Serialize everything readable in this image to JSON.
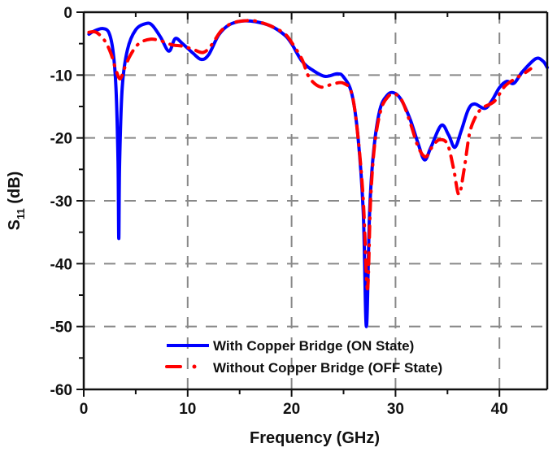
{
  "chart_data": {
    "type": "line",
    "title": "",
    "xlabel": "Frequency (GHz)",
    "ylabel": "S11 (dB)",
    "ylabel_main": "S",
    "ylabel_sub": "11",
    "ylabel_unit": "(dB)",
    "xlim": [
      0,
      44.6
    ],
    "ylim": [
      -60,
      0
    ],
    "xticks": [
      0,
      10,
      20,
      30,
      40
    ],
    "yticks": [
      0,
      -10,
      -20,
      -30,
      -40,
      -50,
      -60
    ],
    "xtick_labels": [
      "0",
      "10",
      "20",
      "30",
      "40"
    ],
    "ytick_labels": [
      "0",
      "-10",
      "-20",
      "-30",
      "-40",
      "-50",
      "-60"
    ],
    "grid": true,
    "legend_position": "lower center",
    "series": [
      {
        "name": "With Copper Bridge (ON State)",
        "color": "#0000ff",
        "style": "solid",
        "x": [
          0.5,
          1.0,
          1.8,
          2.4,
          2.8,
          3.1,
          3.3,
          3.37,
          3.45,
          3.7,
          4.2,
          5.0,
          6.0,
          6.6,
          7.4,
          8.2,
          8.8,
          9.5,
          10.5,
          11.3,
          12.0,
          13.0,
          14.0,
          15.3,
          16.5,
          18.0,
          19.3,
          20.0,
          21.0,
          22.0,
          23.2,
          24.4,
          25.0,
          25.8,
          26.4,
          26.9,
          27.2,
          27.5,
          27.9,
          28.5,
          29.2,
          29.8,
          30.5,
          31.4,
          32.2,
          32.8,
          33.4,
          34.4,
          35.1,
          35.7,
          36.3,
          37.0,
          37.6,
          38.6,
          39.3,
          40.0,
          40.7,
          41.4,
          42.2,
          43.5,
          44.2,
          44.6
        ],
        "y": [
          -3.5,
          -3.0,
          -2.6,
          -3.2,
          -6.0,
          -12.0,
          -24.0,
          -36.0,
          -24.0,
          -12.0,
          -6.0,
          -2.8,
          -1.8,
          -2.1,
          -4.0,
          -6.2,
          -4.2,
          -5.0,
          -6.5,
          -7.5,
          -6.8,
          -3.6,
          -2.0,
          -1.4,
          -1.5,
          -2.2,
          -3.6,
          -5.0,
          -7.8,
          -9.2,
          -10.2,
          -9.8,
          -10.3,
          -13.0,
          -20.0,
          -32.0,
          -50.0,
          -32.0,
          -22.0,
          -15.5,
          -13.2,
          -12.8,
          -13.8,
          -17.0,
          -21.0,
          -23.5,
          -21.5,
          -18.0,
          -19.5,
          -21.5,
          -19.0,
          -15.5,
          -14.6,
          -15.3,
          -14.0,
          -12.0,
          -11.0,
          -11.3,
          -9.5,
          -7.4,
          -7.8,
          -8.8
        ]
      },
      {
        "name": "Without Copper Bridge (OFF State)",
        "color": "#ff0000",
        "style": "dash-dot",
        "x": [
          0.5,
          1.2,
          2.0,
          2.6,
          3.1,
          3.5,
          3.9,
          4.5,
          5.3,
          6.4,
          7.5,
          8.5,
          9.5,
          10.5,
          11.5,
          12.3,
          13.2,
          14.2,
          15.3,
          16.5,
          18.0,
          19.3,
          20.0,
          21.0,
          21.7,
          22.8,
          24.0,
          25.0,
          25.8,
          26.4,
          26.9,
          27.3,
          27.6,
          28.0,
          28.6,
          29.3,
          29.9,
          30.6,
          31.4,
          32.2,
          32.9,
          33.5,
          34.2,
          35.0,
          35.6,
          36.1,
          36.6,
          37.1,
          37.6,
          38.3,
          39.5,
          40.5,
          41.5,
          42.5,
          43.0
        ],
        "y": [
          -3.2,
          -3.2,
          -4.5,
          -6.5,
          -9.2,
          -10.6,
          -9.0,
          -6.8,
          -5.0,
          -4.3,
          -4.6,
          -5.2,
          -5.4,
          -5.9,
          -6.4,
          -5.2,
          -3.0,
          -1.8,
          -1.4,
          -1.4,
          -2.2,
          -3.4,
          -4.8,
          -7.5,
          -10.4,
          -11.9,
          -11.4,
          -11.3,
          -13.0,
          -20.0,
          -30.0,
          -44.0,
          -30.0,
          -21.0,
          -15.5,
          -13.4,
          -13.0,
          -14.0,
          -17.5,
          -21.5,
          -23.0,
          -21.5,
          -20.3,
          -21.0,
          -25.0,
          -29.0,
          -25.0,
          -19.5,
          -17.0,
          -15.3,
          -14.2,
          -11.8,
          -10.6,
          -9.6,
          -9.0
        ]
      }
    ]
  },
  "legend": {
    "on_label": "With Copper Bridge (ON State)",
    "off_label": "Without Copper Bridge (OFF State)"
  }
}
